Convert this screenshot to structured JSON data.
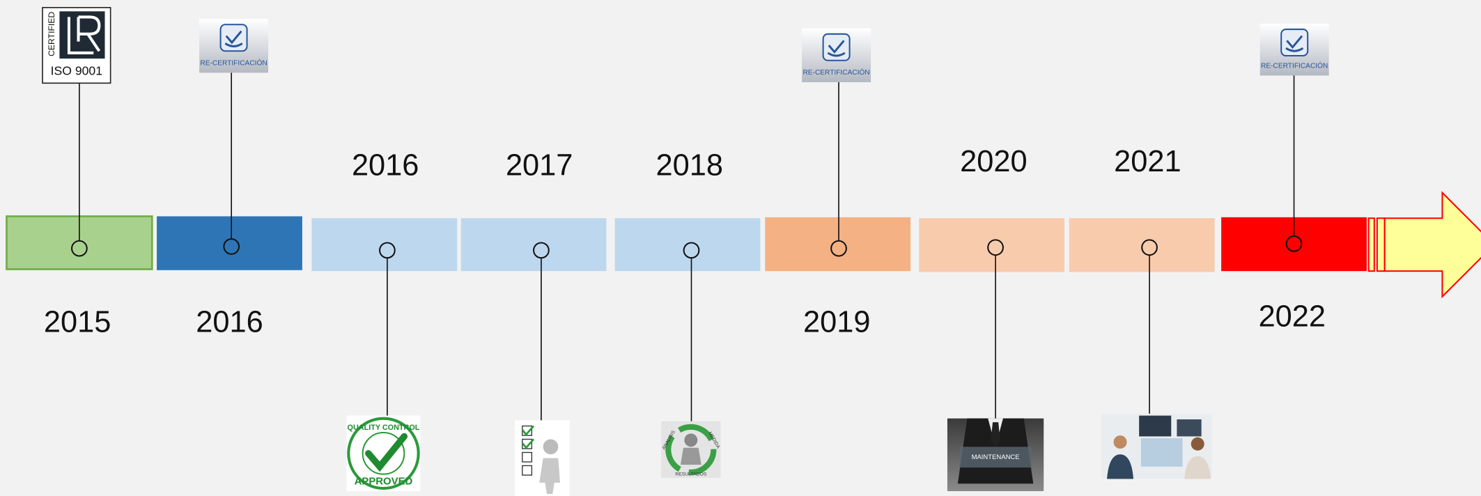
{
  "timeline": {
    "events": [
      {
        "year": "2015",
        "icon_text": [
          "CERTIFIED",
          "ISO 9001"
        ]
      },
      {
        "year": "2016",
        "icon_text": [
          "RE-CERTIFICACIÓN"
        ]
      },
      {
        "year": "2016",
        "icon_text": [
          "QUALITY CONTROL",
          "APPROVED"
        ]
      },
      {
        "year": "2017"
      },
      {
        "year": "2018",
        "icon_text": [
          "ANALISIS",
          "MEDIDA",
          "RESULTADOS"
        ]
      },
      {
        "year": "2019",
        "icon_text": [
          "RE-CERTIFICACIÓN"
        ]
      },
      {
        "year": "2020",
        "icon_text": [
          "MAINTENANCE"
        ]
      },
      {
        "year": "2021"
      },
      {
        "year": "2022",
        "icon_text": [
          "RE-CERTIFICACIÓN"
        ]
      }
    ]
  }
}
